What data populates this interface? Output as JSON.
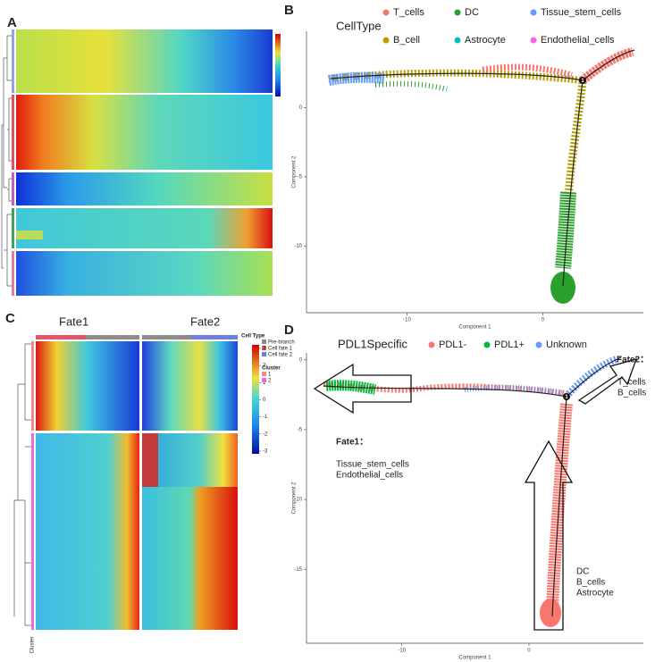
{
  "panel_a": {
    "label": "A"
  },
  "panel_b": {
    "label": "B",
    "legend_title": "CellType",
    "legend": [
      {
        "name": "T_cells",
        "color": "#f8766d"
      },
      {
        "name": "DC",
        "color": "#2ca02c"
      },
      {
        "name": "Tissue_stem_cells",
        "color": "#619cff"
      },
      {
        "name": "B_cell",
        "color": "#b79f00"
      },
      {
        "name": "Astrocyte",
        "color": "#00bfc4"
      },
      {
        "name": "Endothelial_cells",
        "color": "#f564e3"
      }
    ],
    "x_label": "Component 1",
    "y_label": "Component 2",
    "branch_point": "1",
    "xlim": [
      -17.4,
      7.4
    ],
    "ylim": [
      -14.8,
      5.5
    ],
    "xticks": [
      -10,
      0
    ],
    "yticks": [
      0,
      -5,
      -10
    ]
  },
  "panel_c": {
    "label": "C",
    "fate_labels": [
      "Fate1",
      "Fate2"
    ],
    "cell_type_title": "Cell Type",
    "cell_types": [
      {
        "name": "Pre-branch",
        "color": "#8c8c8c"
      },
      {
        "name": "Cell fate 1",
        "color": "#e0566b"
      },
      {
        "name": "Cell fate 2",
        "color": "#6f80d6"
      }
    ],
    "scale_ticks": [
      3,
      2,
      1,
      0,
      -1,
      -2,
      -3
    ],
    "cluster_title": "Cluster",
    "clusters": [
      {
        "name": "1",
        "color": "#f08a8a"
      },
      {
        "name": "2",
        "color": "#e46ee0"
      }
    ],
    "cluster_axis_label": "Cluster"
  },
  "panel_d": {
    "label": "D",
    "legend_title": "PDL1Specific",
    "legend": [
      {
        "name": "PDL1-",
        "color": "#f8766d"
      },
      {
        "name": "PDL1+",
        "color": "#00ba38"
      },
      {
        "name": "Unknown",
        "color": "#619cff"
      }
    ],
    "x_label": "Component 1",
    "y_label": "Component 2",
    "branch_point": "1",
    "xlim": [
      -17.5,
      9.0
    ],
    "ylim": [
      -20.3,
      0.5
    ],
    "xticks": [
      -10,
      0
    ],
    "yticks": [
      0,
      -5,
      -10,
      -15
    ],
    "fate2_title": "Fate2：",
    "fate2_cells": [
      "T_cells",
      "B_cells"
    ],
    "fate1_title": "Fate1：",
    "fate1_cells": [
      "Tissue_stem_cells",
      "Endothelial_cells"
    ],
    "root_cells": [
      "DC",
      "B_cells",
      "Astrocyte"
    ]
  }
}
